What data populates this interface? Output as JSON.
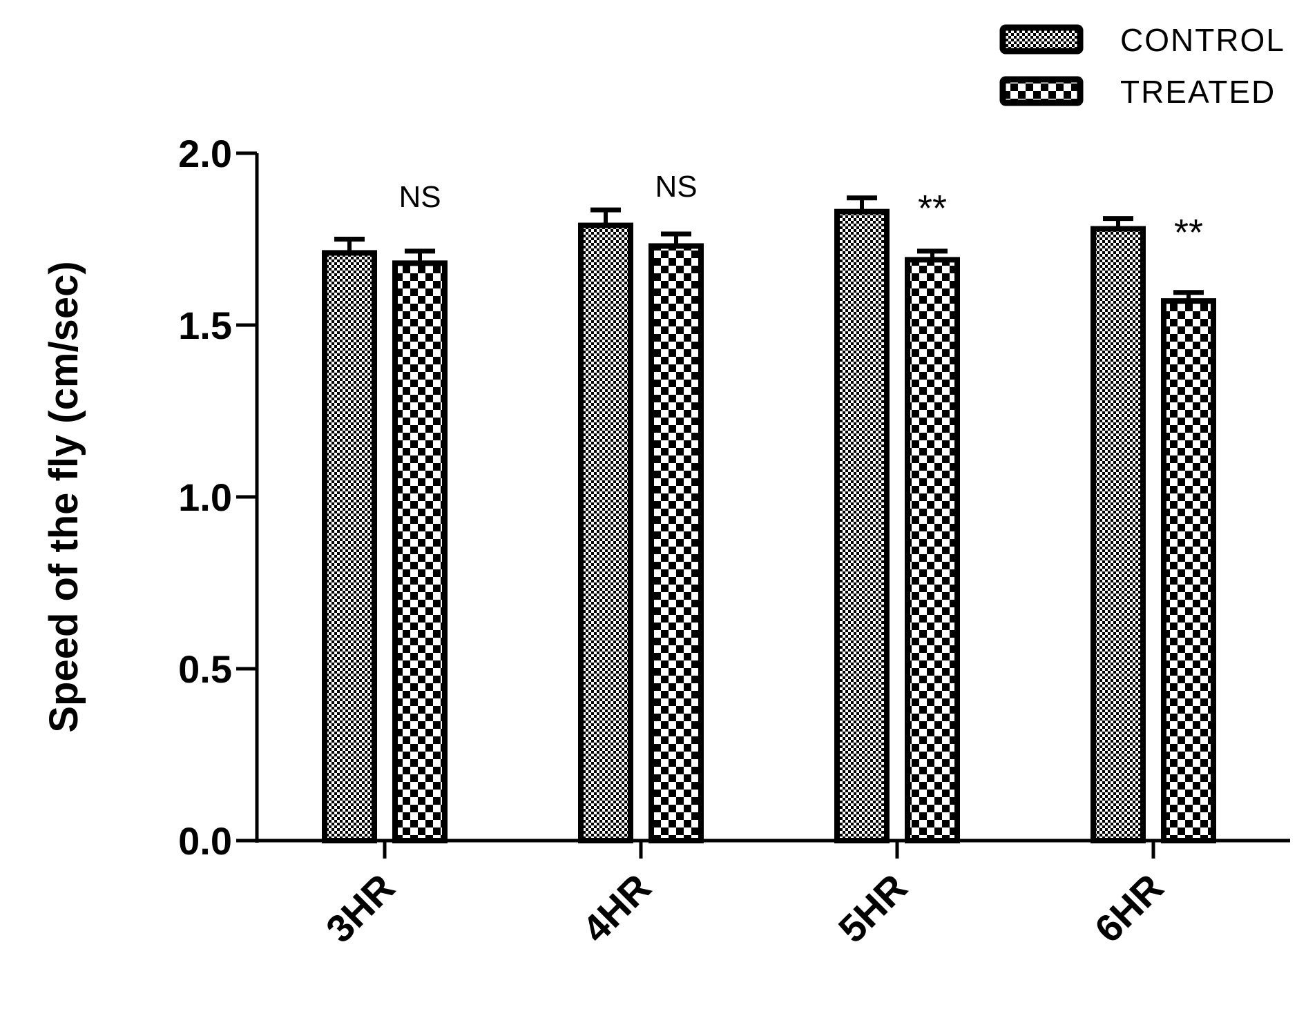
{
  "chart_data": {
    "type": "bar",
    "categories": [
      "3HR",
      "4HR",
      "5HR",
      "6HR"
    ],
    "series": [
      {
        "name": "CONTROL",
        "values": [
          1.71,
          1.79,
          1.83,
          1.78
        ],
        "errors": [
          0.04,
          0.045,
          0.04,
          0.03
        ],
        "pattern": "fine-checker"
      },
      {
        "name": "TREATED",
        "values": [
          1.68,
          1.73,
          1.69,
          1.57
        ],
        "errors": [
          0.035,
          0.035,
          0.025,
          0.025
        ],
        "pattern": "coarse-checker"
      }
    ],
    "annotations": [
      "NS",
      "NS",
      "**",
      "**"
    ],
    "title": "",
    "xlabel": "",
    "ylabel": "Speed of the fly (cm/sec)",
    "ylim": [
      0,
      2.0
    ],
    "yticks": [
      "0.0",
      "0.5",
      "1.0",
      "1.5",
      "2.0"
    ],
    "grid": false,
    "legend_position": "top-right",
    "colors": {
      "bar_fill": "#000000",
      "pattern_light": "#ffffff",
      "axis": "#000000"
    }
  }
}
